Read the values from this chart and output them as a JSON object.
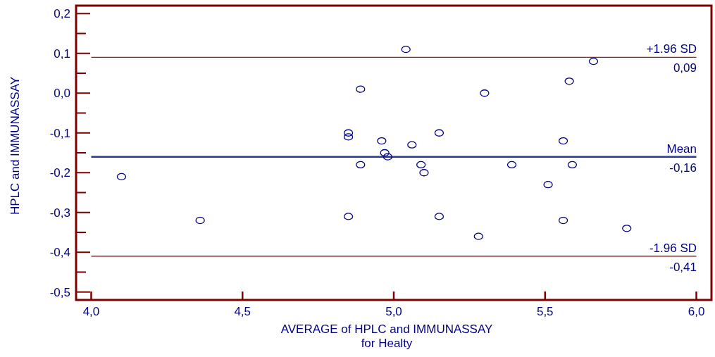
{
  "chart_data": {
    "type": "scatter",
    "ylabel": "HPLC and IMMUNASSAY",
    "xlabel": "AVERAGE of HPLC and IMMUNASSAY\nfor Healty",
    "marker": "circle",
    "xlim": [
      3.95,
      6.05
    ],
    "ylim": [
      -0.52,
      0.22
    ],
    "xticks": [
      {
        "value": 4,
        "label": "4,0"
      },
      {
        "value": 4.5,
        "label": "4,5"
      },
      {
        "value": 5,
        "label": "5,0"
      },
      {
        "value": 5.5,
        "label": "5,5"
      },
      {
        "value": 6,
        "label": "6,0"
      }
    ],
    "yticks": [
      {
        "value": 0.2,
        "label": "0,2"
      },
      {
        "value": 0.15,
        "label": null
      },
      {
        "value": 0.1,
        "label": "0,1"
      },
      {
        "value": 0.05,
        "label": null
      },
      {
        "value": 0,
        "label": "0,0"
      },
      {
        "value": -0.05,
        "label": null
      },
      {
        "value": -0.1,
        "label": "-0,1"
      },
      {
        "value": -0.15,
        "label": null
      },
      {
        "value": -0.2,
        "label": "-0,2"
      },
      {
        "value": -0.25,
        "label": null
      },
      {
        "value": -0.3,
        "label": "-0,3"
      },
      {
        "value": -0.35,
        "label": null
      },
      {
        "value": -0.4,
        "label": "-0,4"
      },
      {
        "value": -0.45,
        "label": null
      },
      {
        "value": -0.5,
        "label": "-0,5"
      }
    ],
    "x": [
      4.1,
      4.36,
      4.85,
      4.85,
      4.85,
      4.89,
      4.89,
      4.96,
      4.97,
      4.98,
      5.04,
      5.06,
      5.09,
      5.1,
      5.15,
      5.15,
      5.28,
      5.3,
      5.39,
      5.51,
      5.56,
      5.56,
      5.58,
      5.59,
      5.66,
      5.77
    ],
    "series": [
      {
        "color": "#000080",
        "values": [
          -0.21,
          -0.32,
          -0.1,
          -0.11,
          -0.31,
          0.01,
          -0.18,
          -0.12,
          -0.15,
          -0.16,
          0.11,
          -0.13,
          -0.18,
          -0.2,
          -0.1,
          -0.31,
          -0.36,
          0.0,
          -0.18,
          -0.23,
          -0.12,
          -0.32,
          0.03,
          -0.18,
          0.08,
          -0.34
        ]
      }
    ],
    "ref_lines": [
      {
        "axis": "y",
        "value": 0.09,
        "label": "+1.96 SD\n0,09",
        "color": "#b01010"
      },
      {
        "axis": "y",
        "value": -0.16,
        "label": "Mean\n-0,16",
        "color": "#2a3a9a"
      },
      {
        "axis": "y",
        "value": -0.41,
        "label": "-1.96 SD\n-0,41",
        "color": "#800000"
      }
    ]
  }
}
